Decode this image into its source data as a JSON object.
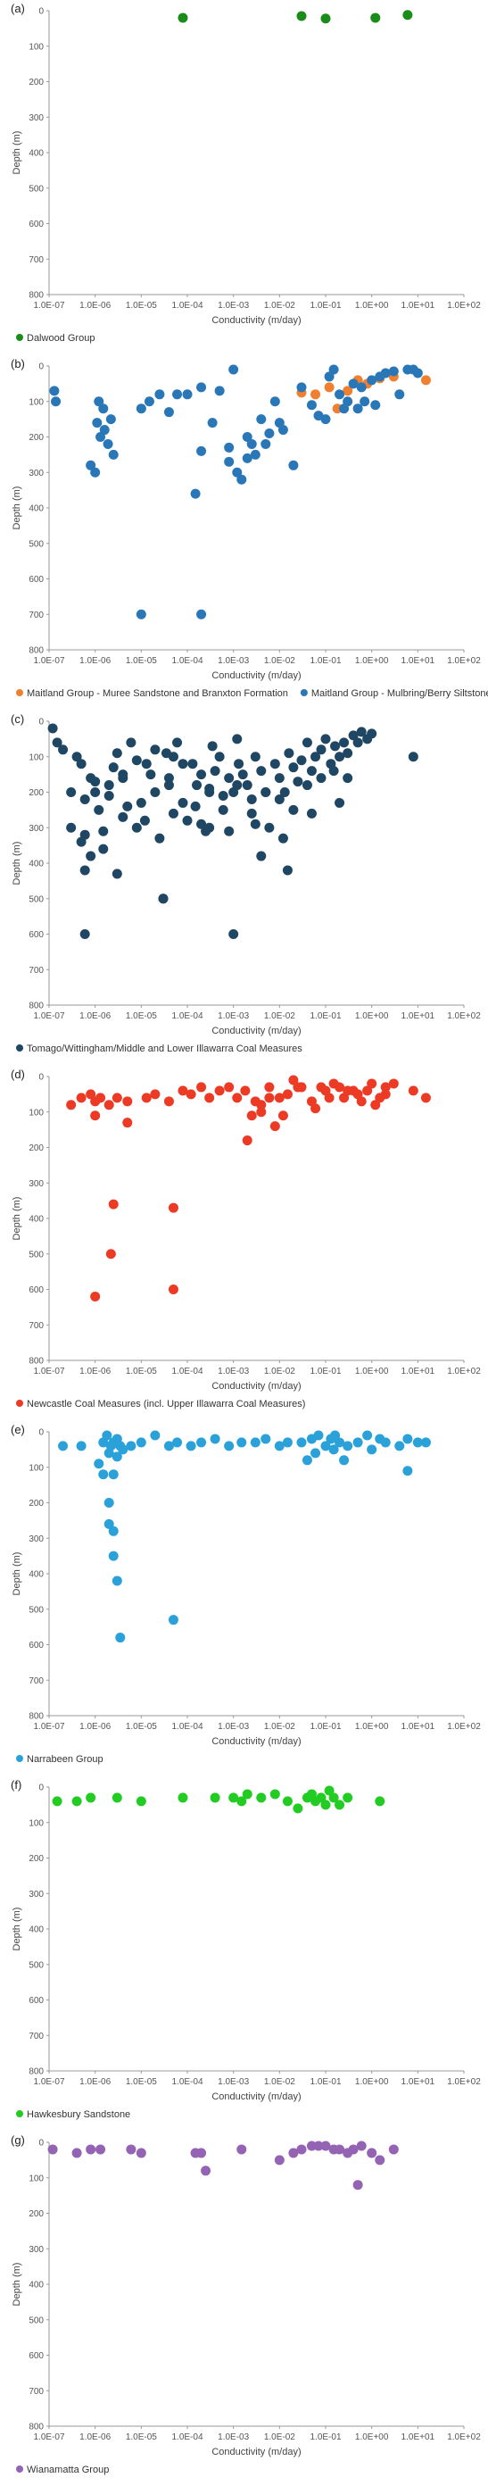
{
  "chart_data": [
    {
      "panel": "(a)",
      "type": "scatter",
      "xlabel": "Conductivity (m/day)",
      "ylabel": "Depth (m)",
      "x_scale": "log",
      "xlim": [
        1e-07,
        100
      ],
      "ylim": [
        800,
        0
      ],
      "x_ticks": [
        "1.0E-07",
        "1.0E-06",
        "1.0E-05",
        "1.0E-04",
        "1.0E-03",
        "1.0E-02",
        "1.0E-01",
        "1.0E+00",
        "1.0E+01",
        "1.0E+02"
      ],
      "y_ticks": [
        "0",
        "100",
        "200",
        "300",
        "400",
        "500",
        "600",
        "700",
        "800"
      ],
      "legend_position": "bottom-left",
      "series": [
        {
          "name": "Dalwood Group",
          "color": "#1a8c1a",
          "x": [
            8e-05,
            0.03,
            0.1,
            1.2,
            6
          ],
          "y": [
            20,
            15,
            22,
            20,
            12
          ]
        }
      ]
    },
    {
      "panel": "(b)",
      "type": "scatter",
      "xlabel": "Conductivity (m/day)",
      "ylabel": "Depth (m)",
      "x_scale": "log",
      "xlim": [
        1e-07,
        100
      ],
      "ylim": [
        800,
        0
      ],
      "x_ticks": [
        "1.0E-07",
        "1.0E-06",
        "1.0E-05",
        "1.0E-04",
        "1.0E-03",
        "1.0E-02",
        "1.0E-01",
        "1.0E+00",
        "1.0E+01",
        "1.0E+02"
      ],
      "y_ticks": [
        "0",
        "100",
        "200",
        "300",
        "400",
        "500",
        "600",
        "700",
        "800"
      ],
      "legend_position": "bottom-left",
      "series": [
        {
          "name": "Maitland Group - Muree Sandstone and Branxton Formation",
          "color": "#f08030",
          "x": [
            0.03,
            0.06,
            0.12,
            0.18,
            0.3,
            0.5,
            0.8,
            1.5,
            3,
            15
          ],
          "y": [
            75,
            80,
            60,
            120,
            70,
            40,
            50,
            35,
            30,
            40
          ]
        },
        {
          "name": "Maitland Group - Mulbring/Berry Siltstone",
          "color": "#2a77b8",
          "x": [
            1.3e-07,
            1.4e-07,
            8e-07,
            1e-06,
            1.1e-06,
            1.3e-06,
            1.6e-06,
            1.9e-06,
            2.2e-06,
            2.5e-06,
            1.2e-06,
            1.5e-06,
            1e-05,
            1.5e-05,
            2.5e-05,
            4e-05,
            6e-05,
            0.0001,
            0.00015,
            0.0002,
            0.00035,
            0.0005,
            0.0008,
            0.001,
            0.0012,
            0.0015,
            0.002,
            0.0025,
            0.003,
            0.004,
            0.005,
            0.008,
            0.012,
            0.02,
            0.03,
            0.05,
            0.07,
            0.1,
            0.12,
            0.15,
            0.2,
            0.3,
            0.4,
            0.5,
            0.7,
            1,
            1.5,
            2,
            3,
            4,
            6,
            8,
            10,
            0.0002,
            1e-05,
            0.0002,
            0.0008,
            0.002,
            0.006,
            0.01,
            0.25,
            0.6,
            1.2
          ],
          "y": [
            70,
            100,
            280,
            300,
            160,
            200,
            180,
            220,
            150,
            250,
            100,
            120,
            120,
            100,
            80,
            130,
            80,
            80,
            360,
            240,
            160,
            70,
            230,
            10,
            300,
            320,
            260,
            220,
            250,
            150,
            220,
            100,
            180,
            280,
            60,
            110,
            140,
            150,
            30,
            10,
            80,
            100,
            50,
            120,
            100,
            40,
            30,
            20,
            15,
            80,
            10,
            10,
            20,
            700,
            700,
            60,
            270,
            200,
            190,
            160,
            120,
            60,
            110
          ]
        }
      ]
    },
    {
      "panel": "(c)",
      "type": "scatter",
      "xlabel": "Conductivity (m/day)",
      "ylabel": "Depth (m)",
      "x_scale": "log",
      "xlim": [
        1e-07,
        100
      ],
      "ylim": [
        800,
        0
      ],
      "x_ticks": [
        "1.0E-07",
        "1.0E-06",
        "1.0E-05",
        "1.0E-04",
        "1.0E-03",
        "1.0E-02",
        "1.0E-01",
        "1.0E+00",
        "1.0E+01",
        "1.0E+02"
      ],
      "y_ticks": [
        "0",
        "100",
        "200",
        "300",
        "400",
        "500",
        "600",
        "700",
        "800"
      ],
      "legend_position": "bottom-left",
      "series": [
        {
          "name": "Tomago/Wittingham/Middle and Lower Illawarra Coal Measures",
          "color": "#1f4763",
          "x": [
            1.2e-07,
            1.5e-07,
            2e-07,
            3e-07,
            4e-07,
            5e-07,
            6e-07,
            8e-07,
            1e-06,
            1.2e-06,
            1.5e-06,
            2e-06,
            2.5e-06,
            3e-06,
            4e-06,
            5e-06,
            6e-06,
            8e-06,
            1e-05,
            1.3e-05,
            1.6e-05,
            2e-05,
            2.5e-05,
            3e-05,
            4e-05,
            5e-05,
            6e-05,
            8e-05,
            0.0001,
            0.00013,
            0.00016,
            0.0002,
            0.00025,
            0.0003,
            0.0004,
            0.0005,
            0.0006,
            0.0008,
            0.001,
            0.0013,
            0.0016,
            0.002,
            0.0025,
            0.003,
            0.004,
            0.005,
            0.006,
            0.008,
            0.01,
            0.013,
            0.016,
            0.02,
            0.025,
            0.03,
            0.04,
            0.05,
            0.06,
            0.08,
            0.1,
            0.13,
            0.16,
            0.2,
            0.25,
            0.3,
            0.4,
            0.5,
            0.6,
            0.8,
            1,
            8,
            3e-07,
            6e-07,
            1e-06,
            2e-06,
            4e-06,
            8e-06,
            2e-05,
            4e-05,
            8e-05,
            0.00015,
            0.0003,
            0.0006,
            0.0012,
            0.0025,
            0.005,
            0.01,
            0.02,
            0.04,
            0.08,
            0.15,
            0.3,
            5e-07,
            1.5e-06,
            4e-06,
            1.2e-05,
            5e-05,
            0.0002,
            0.0008,
            0.003,
            0.012,
            0.05,
            0.2,
            6e-07,
            8e-07,
            3e-06,
            3e-05,
            0.0003,
            0.001,
            0.004,
            0.015,
            6e-07,
            3.5e-05,
            0.00035,
            0.0012
          ],
          "y": [
            20,
            60,
            80,
            300,
            100,
            120,
            420,
            160,
            200,
            250,
            310,
            180,
            130,
            90,
            270,
            240,
            60,
            300,
            230,
            120,
            150,
            80,
            330,
            500,
            180,
            100,
            60,
            230,
            280,
            120,
            180,
            150,
            310,
            200,
            140,
            100,
            250,
            160,
            200,
            120,
            150,
            180,
            260,
            100,
            140,
            200,
            300,
            120,
            160,
            200,
            90,
            130,
            170,
            110,
            60,
            140,
            100,
            80,
            50,
            120,
            70,
            100,
            60,
            90,
            40,
            60,
            30,
            50,
            35,
            100,
            200,
            220,
            170,
            210,
            160,
            110,
            200,
            160,
            120,
            240,
            190,
            210,
            180,
            220,
            200,
            220,
            250,
            180,
            160,
            140,
            160,
            340,
            360,
            150,
            280,
            260,
            290,
            310,
            290,
            330,
            260,
            230,
            600,
            380,
            430,
            500,
            300,
            600,
            380,
            420,
            320,
            90,
            70,
            50
          ]
        }
      ]
    },
    {
      "panel": "(d)",
      "type": "scatter",
      "xlabel": "Conductivity (m/day)",
      "ylabel": "Depth (m)",
      "x_scale": "log",
      "xlim": [
        1e-07,
        100
      ],
      "ylim": [
        800,
        0
      ],
      "x_ticks": [
        "1.0E-07",
        "1.0E-06",
        "1.0E-05",
        "1.0E-04",
        "1.0E-03",
        "1.0E-02",
        "1.0E-01",
        "1.0E+00",
        "1.0E+01",
        "1.0E+02"
      ],
      "y_ticks": [
        "0",
        "100",
        "200",
        "300",
        "400",
        "500",
        "600",
        "700",
        "800"
      ],
      "legend_position": "bottom-left",
      "series": [
        {
          "name": "Newcastle Coal Measures (incl. Upper Illawarra Coal Measures)",
          "color": "#ec3a24",
          "x": [
            3e-07,
            5e-07,
            8e-07,
            1e-06,
            1.3e-06,
            2e-06,
            3e-06,
            5e-06,
            1.3e-05,
            2e-05,
            4e-05,
            8e-05,
            0.00012,
            0.0002,
            0.0003,
            0.0005,
            0.0008,
            0.0012,
            0.0018,
            0.0025,
            0.004,
            0.006,
            0.01,
            0.015,
            0.02,
            0.03,
            0.05,
            0.08,
            0.1,
            0.15,
            0.2,
            0.3,
            0.5,
            0.8,
            1,
            1.5,
            2,
            3,
            8,
            15,
            2.5e-06,
            2.2e-06,
            1e-06,
            5e-05,
            5e-05,
            0.002,
            0.003,
            0.004,
            0.006,
            0.008,
            0.012,
            0.025,
            0.06,
            0.12,
            0.25,
            0.4,
            0.6,
            1.2,
            2,
            5e-06,
            1e-06
          ],
          "y": [
            80,
            60,
            50,
            110,
            60,
            80,
            60,
            70,
            60,
            50,
            70,
            40,
            50,
            30,
            60,
            40,
            30,
            60,
            40,
            110,
            100,
            30,
            60,
            50,
            10,
            30,
            70,
            30,
            40,
            20,
            30,
            40,
            50,
            40,
            20,
            60,
            30,
            20,
            40,
            60,
            360,
            500,
            620,
            370,
            600,
            180,
            70,
            80,
            60,
            140,
            110,
            30,
            90,
            60,
            60,
            40,
            70,
            80,
            50,
            130,
            70
          ]
        }
      ]
    },
    {
      "panel": "(e)",
      "type": "scatter",
      "xlabel": "Conductivity (m/day)",
      "ylabel": "Depth (m)",
      "x_scale": "log",
      "xlim": [
        1e-07,
        100
      ],
      "ylim": [
        800,
        0
      ],
      "x_ticks": [
        "1.0E-07",
        "1.0E-06",
        "1.0E-05",
        "1.0E-04",
        "1.0E-03",
        "1.0E-02",
        "1.0E-01",
        "1.0E+00",
        "1.0E+01",
        "1.0E+02"
      ],
      "y_ticks": [
        "0",
        "100",
        "200",
        "300",
        "400",
        "500",
        "600",
        "700",
        "800"
      ],
      "legend_position": "bottom-left",
      "series": [
        {
          "name": "Narrabeen Group",
          "color": "#2aa1d8",
          "x": [
            2e-07,
            5e-07,
            1.5e-06,
            1.8e-06,
            2e-06,
            2.2e-06,
            2.5e-06,
            3e-06,
            3.5e-06,
            4e-06,
            6e-06,
            1e-05,
            2e-05,
            4e-05,
            6e-05,
            0.00012,
            0.0002,
            0.0004,
            0.0008,
            0.0015,
            0.003,
            0.005,
            0.01,
            0.015,
            0.03,
            0.05,
            0.07,
            0.1,
            0.13,
            0.16,
            0.2,
            0.3,
            0.5,
            0.8,
            1,
            1.5,
            2,
            4,
            6,
            10,
            15,
            2e-06,
            2.5e-06,
            3e-06,
            3.5e-06,
            1.5e-06,
            2e-06,
            2.5e-06,
            5e-05,
            0.04,
            0.06,
            0.15,
            0.25,
            6,
            2.5e-06,
            1.2e-06,
            3e-06
          ],
          "y": [
            40,
            40,
            30,
            10,
            60,
            40,
            30,
            20,
            40,
            50,
            40,
            30,
            10,
            40,
            30,
            40,
            30,
            20,
            40,
            30,
            30,
            20,
            40,
            30,
            30,
            20,
            10,
            40,
            20,
            10,
            30,
            40,
            30,
            10,
            50,
            20,
            30,
            40,
            20,
            30,
            30,
            260,
            350,
            420,
            580,
            120,
            200,
            280,
            530,
            80,
            60,
            50,
            80,
            110,
            120,
            90,
            70
          ]
        }
      ]
    },
    {
      "panel": "(f)",
      "type": "scatter",
      "xlabel": "Conductivity (m/day)",
      "ylabel": "Depth (m)",
      "x_scale": "log",
      "xlim": [
        1e-07,
        100
      ],
      "ylim": [
        800,
        0
      ],
      "x_ticks": [
        "1.0E-07",
        "1.0E-06",
        "1.0E-05",
        "1.0E-04",
        "1.0E-03",
        "1.0E-02",
        "1.0E-01",
        "1.0E+00",
        "1.0E+01",
        "1.0E+02"
      ],
      "y_ticks": [
        "0",
        "100",
        "200",
        "300",
        "400",
        "500",
        "600",
        "700",
        "800"
      ],
      "legend_position": "bottom-left",
      "series": [
        {
          "name": "Hawkesbury Sandstone",
          "color": "#22cc22",
          "x": [
            1.5e-07,
            4e-07,
            8e-07,
            3e-06,
            1e-05,
            8e-05,
            0.0004,
            0.001,
            0.0015,
            0.002,
            0.004,
            0.008,
            0.015,
            0.025,
            0.04,
            0.05,
            0.06,
            0.08,
            0.1,
            0.12,
            0.15,
            0.2,
            0.3,
            1.5
          ],
          "y": [
            40,
            40,
            30,
            30,
            40,
            30,
            30,
            30,
            40,
            20,
            30,
            20,
            40,
            60,
            30,
            20,
            40,
            30,
            50,
            10,
            30,
            50,
            30,
            40
          ]
        }
      ]
    },
    {
      "panel": "(g)",
      "type": "scatter",
      "xlabel": "Conductivity (m/day)",
      "ylabel": "Depth (m)",
      "x_scale": "log",
      "xlim": [
        1e-07,
        100
      ],
      "ylim": [
        800,
        0
      ],
      "x_ticks": [
        "1.0E-07",
        "1.0E-06",
        "1.0E-05",
        "1.0E-04",
        "1.0E-03",
        "1.0E-02",
        "1.0E-01",
        "1.0E+00",
        "1.0E+01",
        "1.0E+02"
      ],
      "y_ticks": [
        "0",
        "100",
        "200",
        "300",
        "400",
        "500",
        "600",
        "700",
        "800"
      ],
      "legend_position": "bottom-left",
      "series": [
        {
          "name": "Wianamatta Group",
          "color": "#9463b4",
          "x": [
            1.2e-07,
            4e-07,
            8e-07,
            1.3e-06,
            6e-06,
            1e-05,
            0.00015,
            0.0002,
            0.00025,
            0.0015,
            0.01,
            0.02,
            0.03,
            0.05,
            0.07,
            0.1,
            0.15,
            0.2,
            0.3,
            0.4,
            0.5,
            0.6,
            1,
            1.5,
            3
          ],
          "y": [
            20,
            30,
            20,
            20,
            20,
            30,
            30,
            30,
            80,
            20,
            50,
            30,
            20,
            10,
            10,
            10,
            20,
            20,
            30,
            20,
            120,
            10,
            30,
            50,
            20
          ]
        }
      ]
    }
  ]
}
